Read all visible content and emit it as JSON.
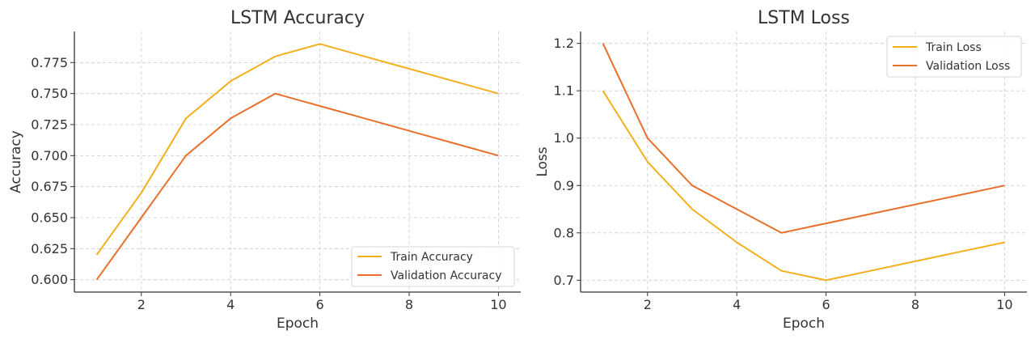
{
  "chart_data": [
    {
      "type": "line",
      "title": "LSTM Accuracy",
      "xlabel": "Epoch",
      "ylabel": "Accuracy",
      "x": [
        1,
        2,
        3,
        4,
        5,
        6,
        7,
        8,
        9,
        10
      ],
      "xlim": [
        0.5,
        10.5
      ],
      "ylim": [
        0.59,
        0.8
      ],
      "xticks": [
        2,
        4,
        6,
        8,
        10
      ],
      "xtick_labels": [
        "2",
        "4",
        "6",
        "8",
        "10"
      ],
      "yticks": [
        0.6,
        0.625,
        0.65,
        0.675,
        0.7,
        0.725,
        0.75,
        0.775
      ],
      "ytick_labels": [
        "0.600",
        "0.625",
        "0.650",
        "0.675",
        "0.700",
        "0.725",
        "0.750",
        "0.775"
      ],
      "grid": true,
      "legend_position": "bottom-right",
      "series": [
        {
          "name": "Train Accuracy",
          "color": "#F2B01E",
          "values": [
            0.62,
            0.67,
            0.73,
            0.76,
            0.78,
            0.79,
            0.78,
            0.77,
            0.76,
            0.75
          ]
        },
        {
          "name": "Validation Accuracy",
          "color": "#E8702A",
          "values": [
            0.6,
            0.65,
            0.7,
            0.73,
            0.75,
            0.74,
            0.73,
            0.72,
            0.71,
            0.7
          ]
        }
      ]
    },
    {
      "type": "line",
      "title": "LSTM Loss",
      "xlabel": "Epoch",
      "ylabel": "Loss",
      "x": [
        1,
        2,
        3,
        4,
        5,
        6,
        7,
        8,
        9,
        10
      ],
      "xlim": [
        0.5,
        10.5
      ],
      "ylim": [
        0.675,
        1.225
      ],
      "xticks": [
        2,
        4,
        6,
        8,
        10
      ],
      "xtick_labels": [
        "2",
        "4",
        "6",
        "8",
        "10"
      ],
      "yticks": [
        0.7,
        0.8,
        0.9,
        1.0,
        1.1,
        1.2
      ],
      "ytick_labels": [
        "0.7",
        "0.8",
        "0.9",
        "1.0",
        "1.1",
        "1.2"
      ],
      "grid": true,
      "legend_position": "top-right",
      "series": [
        {
          "name": "Train Loss",
          "color": "#F2B01E",
          "values": [
            1.1,
            0.95,
            0.85,
            0.78,
            0.72,
            0.7,
            0.72,
            0.74,
            0.76,
            0.78
          ]
        },
        {
          "name": "Validation Loss",
          "color": "#E8702A",
          "values": [
            1.2,
            1.0,
            0.9,
            0.85,
            0.8,
            0.82,
            0.84,
            0.86,
            0.88,
            0.9
          ]
        }
      ]
    }
  ]
}
